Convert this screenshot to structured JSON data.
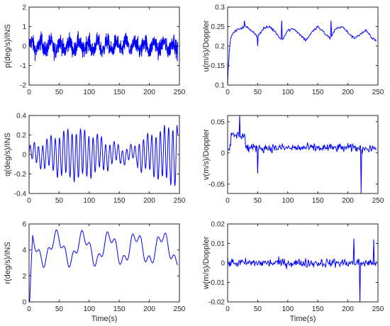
{
  "figure": {
    "colors": {
      "line": "#0000ff",
      "axis": "#262626",
      "background": "#ffffff"
    },
    "grid": false,
    "legend": "none"
  },
  "chart_data": [
    {
      "id": "p",
      "type": "line",
      "signal": "noise_fast",
      "xlabel": "",
      "ylabel": "p(deg/s)/INS",
      "xlim": [
        0,
        250
      ],
      "ylim": [
        -2,
        2
      ],
      "xticks": [
        0,
        50,
        100,
        150,
        200,
        250
      ],
      "yticks": [
        -2,
        -1,
        0,
        1,
        2
      ],
      "ytick_labels": [
        "-2",
        "-1",
        "0",
        "1",
        "2"
      ],
      "series": [
        {
          "x": [
            0,
            250
          ],
          "y_mean": 0,
          "y_range_envelope": [
            -1.5,
            1.55
          ],
          "color": "#0000ff"
        }
      ]
    },
    {
      "id": "u",
      "type": "line",
      "signal": "doppler_u",
      "xlabel": "",
      "ylabel": "u(m/s)/Doppler",
      "xlim": [
        0,
        250
      ],
      "ylim": [
        0.1,
        0.3
      ],
      "xticks": [
        0,
        50,
        100,
        150,
        200,
        250
      ],
      "yticks": [
        0.1,
        0.15,
        0.2,
        0.25,
        0.3
      ],
      "ytick_labels": [
        "0.1",
        "0.15",
        "0.2",
        "0.25",
        "0.3"
      ],
      "series": [
        {
          "x": [
            0,
            1,
            3,
            5,
            10,
            20,
            30,
            40,
            50,
            60,
            70,
            80,
            90,
            100,
            110,
            120,
            130,
            140,
            150,
            160,
            170,
            180,
            190,
            200,
            210,
            220,
            230,
            240,
            247
          ],
          "y": [
            0.1,
            0.14,
            0.19,
            0.22,
            0.235,
            0.245,
            0.25,
            0.24,
            0.225,
            0.245,
            0.25,
            0.235,
            0.215,
            0.24,
            0.245,
            0.23,
            0.215,
            0.235,
            0.25,
            0.235,
            0.22,
            0.245,
            0.25,
            0.235,
            0.22,
            0.23,
            0.24,
            0.22,
            0.215
          ],
          "color": "#0000ff"
        }
      ]
    },
    {
      "id": "q",
      "type": "line",
      "signal": "oscillation_q",
      "xlabel": "",
      "ylabel": "q(deg/s)/INS",
      "xlim": [
        0,
        250
      ],
      "ylim": [
        -0.4,
        0.4
      ],
      "xticks": [
        0,
        50,
        100,
        150,
        200,
        250
      ],
      "yticks": [
        -0.4,
        -0.2,
        0,
        0.2,
        0.4
      ],
      "ytick_labels": [
        "-0.4",
        "-0.2",
        "0",
        "0.2",
        "0.4"
      ],
      "series": [
        {
          "x": [
            0,
            250
          ],
          "amplitude_envelope": [
            0.08,
            0.3
          ],
          "color": "#0000ff"
        }
      ]
    },
    {
      "id": "v",
      "type": "line",
      "signal": "doppler_v",
      "xlabel": "",
      "ylabel": "v(m/s)/Doppler",
      "xlim": [
        0,
        250
      ],
      "ylim": [
        -0.065,
        0.06
      ],
      "xticks": [
        0,
        50,
        100,
        150,
        200,
        250
      ],
      "yticks": [
        -0.05,
        0,
        0.05
      ],
      "ytick_labels": [
        "-0.05",
        "0",
        "0.05"
      ],
      "series": [
        {
          "x": [
            0,
            250
          ],
          "y_mean": 0.01,
          "spikes": [
            {
              "x": 20,
              "y": 0.06
            },
            {
              "x": 50,
              "y": -0.033
            },
            {
              "x": 222,
              "y": -0.065
            }
          ],
          "color": "#0000ff"
        }
      ]
    },
    {
      "id": "r",
      "type": "line",
      "signal": "heading_r",
      "xlabel": "Time(s)",
      "ylabel": "r(deg/s)/INS",
      "xlim": [
        0,
        250
      ],
      "ylim": [
        0,
        6
      ],
      "xticks": [
        0,
        50,
        100,
        150,
        200,
        250
      ],
      "yticks": [
        0,
        2,
        4,
        6
      ],
      "ytick_labels": [
        "0",
        "2",
        "4",
        "6"
      ],
      "series": [
        {
          "x": [
            0,
            250
          ],
          "y_mean": 4.2,
          "y_range_envelope": [
            2.7,
            5.6
          ],
          "period": 45,
          "color": "#0000ff"
        }
      ]
    },
    {
      "id": "w",
      "type": "line",
      "signal": "doppler_w",
      "xlabel": "Time(s)",
      "ylabel": "w(m/s)/Doppler",
      "xlim": [
        0,
        250
      ],
      "ylim": [
        -0.02,
        0.02
      ],
      "xticks": [
        0,
        50,
        100,
        150,
        200,
        250
      ],
      "yticks": [
        -0.02,
        -0.01,
        0,
        0.01,
        0.02
      ],
      "ytick_labels": [
        "-0.02",
        "-0.01",
        "0",
        "0.01",
        "0.02"
      ],
      "series": [
        {
          "x": [
            0,
            250
          ],
          "y_mean": 0,
          "spikes": [
            {
              "x": 220,
              "y": -0.02
            },
            {
              "x": 210,
              "y": 0.0125
            },
            {
              "x": 243,
              "y": 0.012
            }
          ],
          "color": "#0000ff"
        }
      ]
    }
  ]
}
